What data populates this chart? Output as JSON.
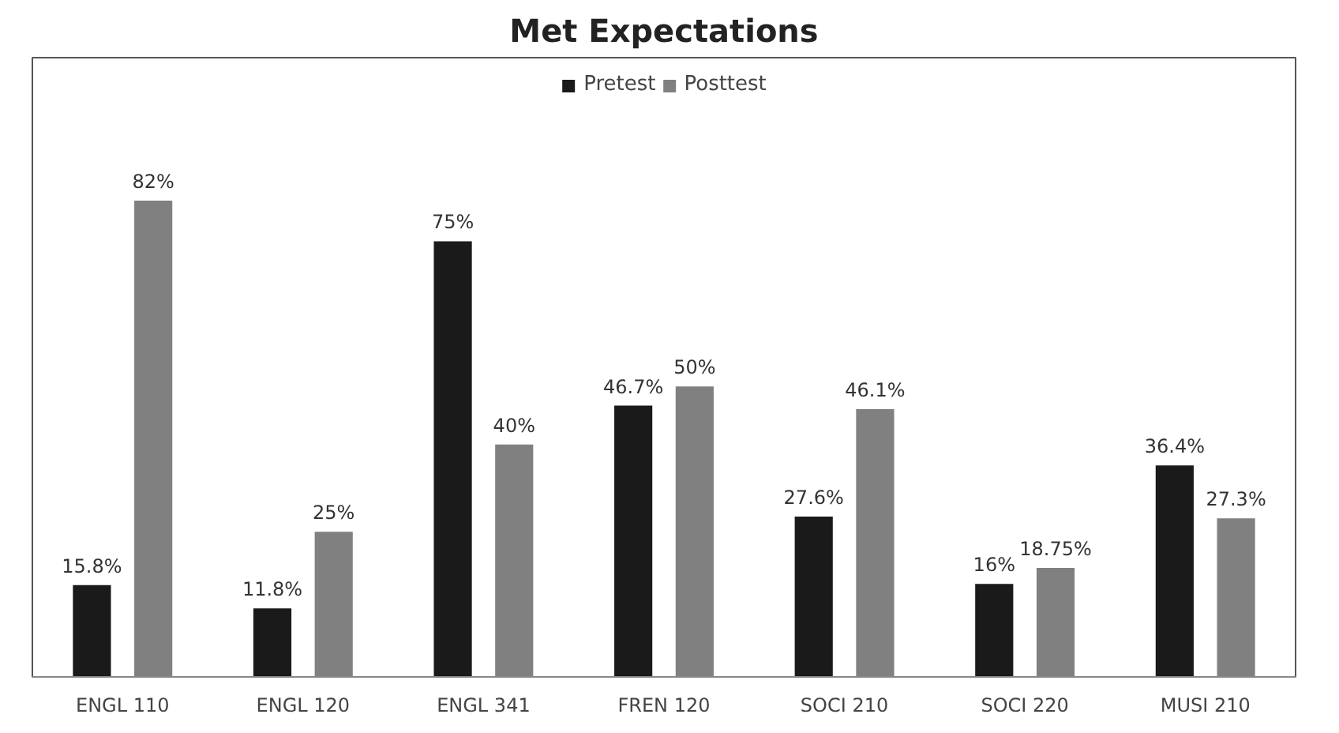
{
  "chart_data": {
    "type": "bar",
    "title": "Met Expectations",
    "categories": [
      "ENGL 110",
      "ENGL 120",
      "ENGL 341",
      "FREN 120",
      "SOCI 210",
      "SOCI 220",
      "MUSI 210"
    ],
    "series": [
      {
        "name": "Pretest",
        "color": "#1a1a1a",
        "values": [
          15.8,
          11.8,
          75,
          46.7,
          27.6,
          16,
          36.4
        ],
        "value_labels": [
          "15.8%",
          "11.8%",
          "75%",
          "46.7%",
          "27.6%",
          "16%",
          "36.4%"
        ]
      },
      {
        "name": "Posttest",
        "color": "#808080",
        "values": [
          82,
          25,
          40,
          50,
          46.1,
          18.75,
          27.3
        ],
        "value_labels": [
          "82%",
          "25%",
          "40%",
          "50%",
          "46.1%",
          "18.75%",
          "27.3%"
        ]
      }
    ],
    "legend": "top"
  }
}
